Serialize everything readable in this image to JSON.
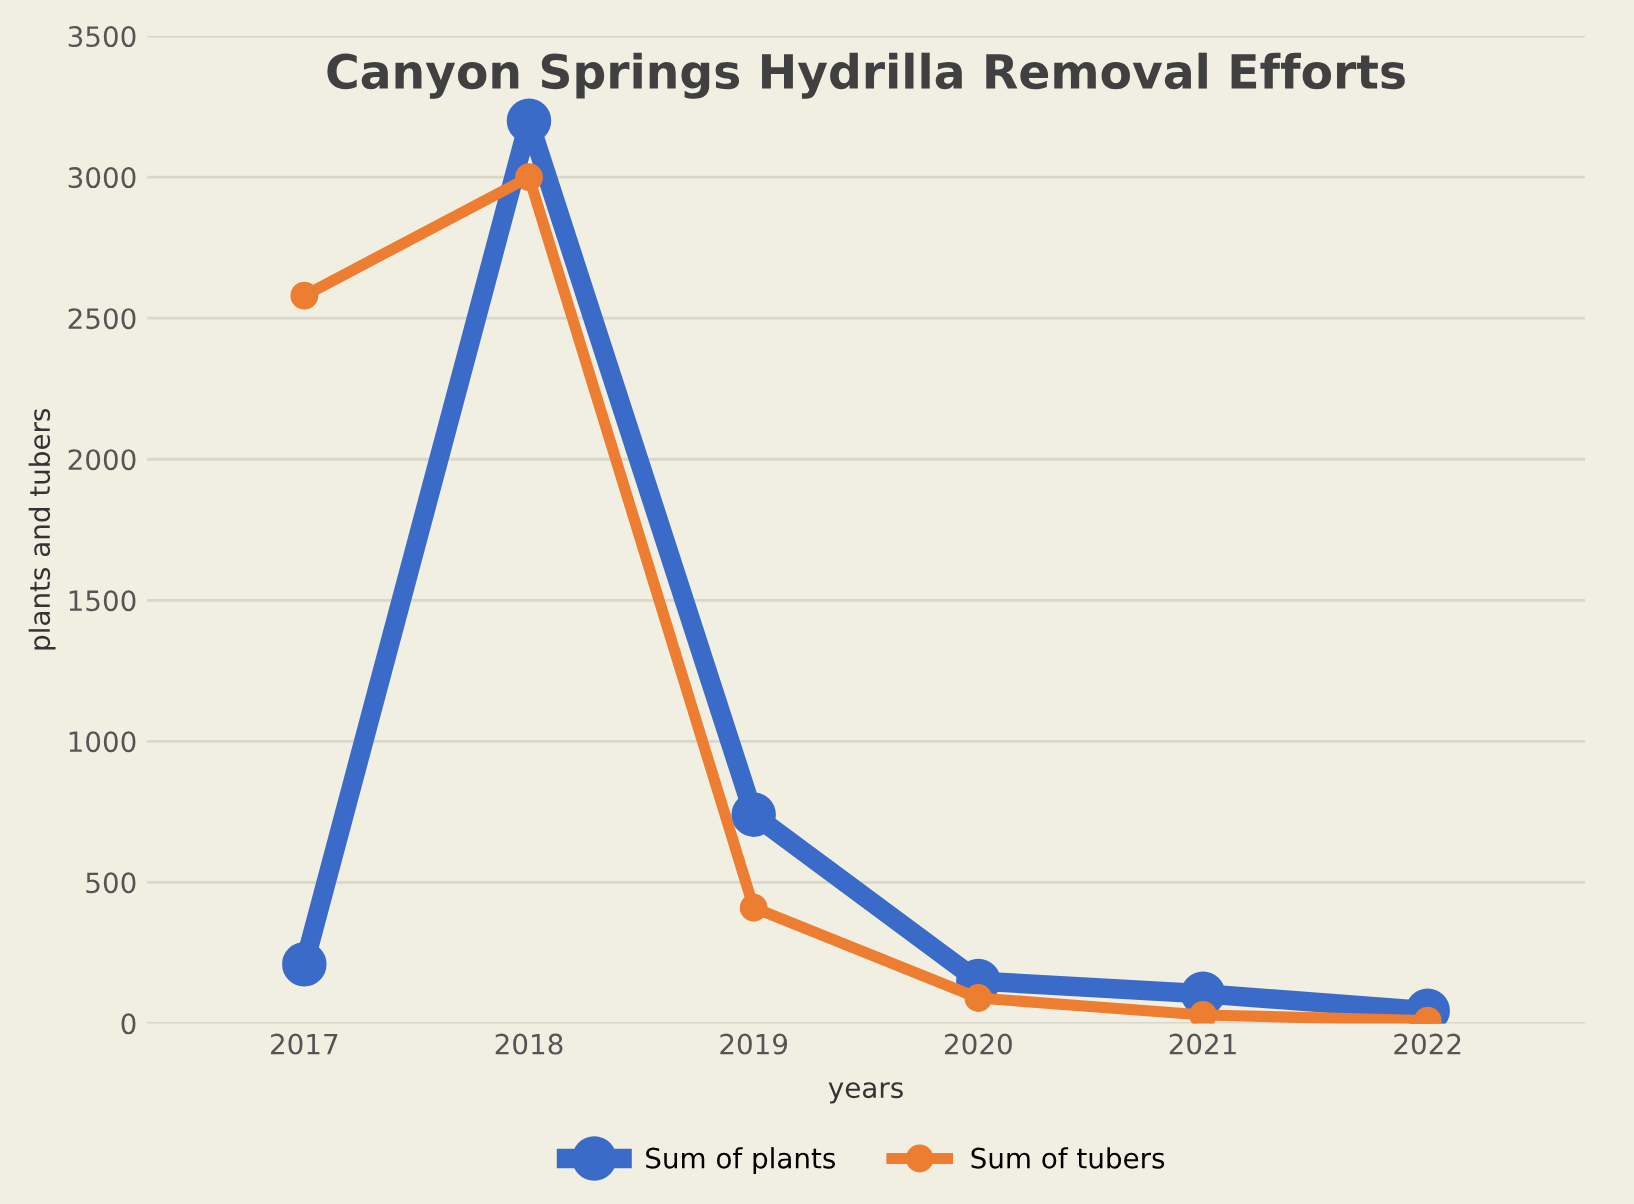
{
  "chart_data": {
    "type": "line",
    "title": "Canyon Springs Hydrilla Removal Efforts",
    "xlabel": "years",
    "ylabel": "plants and tubers",
    "categories": [
      "2017",
      "2018",
      "2019",
      "2020",
      "2021",
      "2022"
    ],
    "series": [
      {
        "name": "Sum of plants",
        "color": "#3a6bc8",
        "values": [
          210,
          3200,
          740,
          150,
          105,
          45
        ]
      },
      {
        "name": "Sum of tubers",
        "color": "#ed7d31",
        "values": [
          2580,
          3000,
          410,
          90,
          30,
          10
        ]
      }
    ],
    "ylim": [
      0,
      3500
    ],
    "yticks": [
      0,
      500,
      1000,
      1500,
      2000,
      2500,
      3000,
      3500
    ],
    "grid": "y",
    "legend": "bottom",
    "marker": "circle",
    "line_style": "solid"
  }
}
